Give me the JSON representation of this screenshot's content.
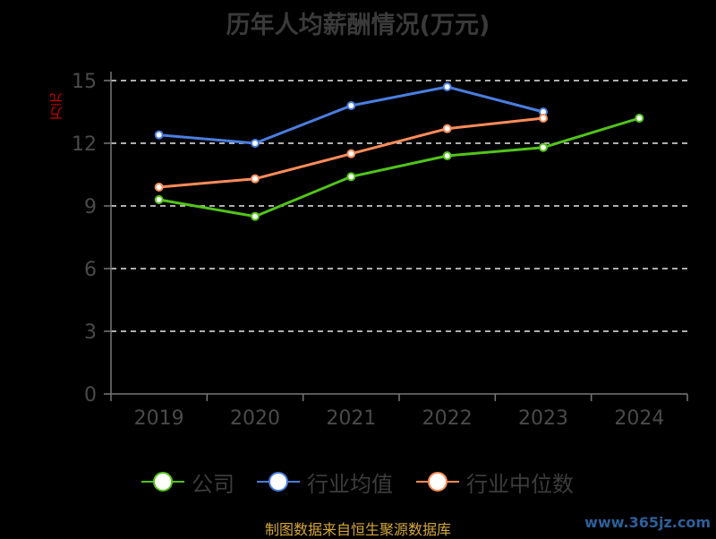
{
  "chart_data": {
    "type": "line",
    "title": "历年人均薪酬情况(万元)",
    "ylabel": "万元",
    "categories": [
      "2019",
      "2020",
      "2021",
      "2022",
      "2023",
      "2024"
    ],
    "ylim": [
      0,
      15
    ],
    "yticks": [
      0,
      3,
      6,
      9,
      12,
      15
    ],
    "grid": true,
    "legend_position": "bottom",
    "series": [
      {
        "name": "公司",
        "color": "#52c41a",
        "values": [
          9.3,
          8.5,
          10.4,
          11.4,
          11.8,
          13.2
        ]
      },
      {
        "name": "行业均值",
        "color": "#4a7ee0",
        "values": [
          12.4,
          12.0,
          13.8,
          14.7,
          13.5,
          null
        ]
      },
      {
        "name": "行业中位数",
        "color": "#ff8c5a",
        "values": [
          9.9,
          10.3,
          11.5,
          12.7,
          13.2,
          null
        ]
      }
    ]
  },
  "source_text": "制图数据来自恒生聚源数据库",
  "watermark_text": "www.365jz.com"
}
